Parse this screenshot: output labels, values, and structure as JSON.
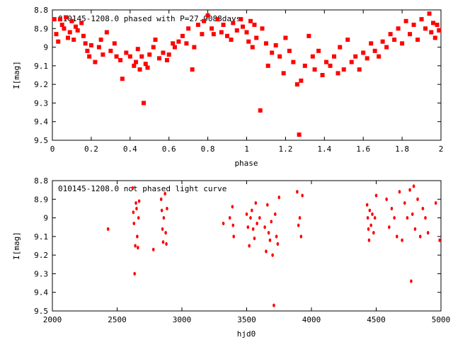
{
  "chart_data": [
    {
      "type": "scatter",
      "title": "010145-1208.0 phased with P=27.9088days",
      "xlabel": "phase",
      "ylabel": "I[mag]",
      "xlim": [
        0,
        2
      ],
      "ylim": [
        9.5,
        8.8
      ],
      "y_inverted": true,
      "grid": false,
      "xticks": [
        0,
        0.2,
        0.4,
        0.6,
        0.8,
        1,
        1.2,
        1.4,
        1.6,
        1.8,
        2
      ],
      "xticklabels": [
        "0",
        "0.2",
        "0.4",
        "0.6",
        "0.8",
        "1",
        "1.2",
        "1.4",
        "1.6",
        "1.8",
        "2"
      ],
      "yticks": [
        8.8,
        8.9,
        9.0,
        9.1,
        9.2,
        9.3,
        9.4,
        9.5
      ],
      "yticklabels": [
        "8.8",
        "8.9",
        "9",
        "9.1",
        "9.2",
        "9.3",
        "9.4",
        "9.5"
      ],
      "marker_color": "#ff0000",
      "points": [
        [
          0.01,
          8.85
        ],
        [
          0.02,
          8.93
        ],
        [
          0.03,
          8.97
        ],
        [
          0.04,
          8.85
        ],
        [
          0.05,
          8.88
        ],
        [
          0.06,
          8.9
        ],
        [
          0.07,
          8.84
        ],
        [
          0.08,
          8.95
        ],
        [
          0.09,
          8.92
        ],
        [
          0.1,
          8.86
        ],
        [
          0.11,
          8.96
        ],
        [
          0.12,
          8.89
        ],
        [
          0.13,
          8.91
        ],
        [
          0.15,
          8.87
        ],
        [
          0.16,
          8.94
        ],
        [
          0.17,
          8.98
        ],
        [
          0.18,
          9.02
        ],
        [
          0.19,
          9.05
        ],
        [
          0.2,
          8.99
        ],
        [
          0.22,
          9.08
        ],
        [
          0.24,
          9.0
        ],
        [
          0.25,
          8.96
        ],
        [
          0.26,
          9.04
        ],
        [
          0.28,
          8.92
        ],
        [
          0.3,
          9.02
        ],
        [
          0.32,
          8.98
        ],
        [
          0.33,
          9.05
        ],
        [
          0.35,
          9.07
        ],
        [
          0.36,
          9.17
        ],
        [
          0.38,
          9.03
        ],
        [
          0.4,
          9.05
        ],
        [
          0.42,
          9.1
        ],
        [
          0.43,
          9.08
        ],
        [
          0.44,
          9.01
        ],
        [
          0.45,
          9.12
        ],
        [
          0.46,
          9.05
        ],
        [
          0.47,
          9.3
        ],
        [
          0.48,
          9.09
        ],
        [
          0.49,
          9.11
        ],
        [
          0.5,
          9.04
        ],
        [
          0.52,
          9.0
        ],
        [
          0.53,
          8.96
        ],
        [
          0.55,
          9.06
        ],
        [
          0.57,
          9.03
        ],
        [
          0.59,
          9.07
        ],
        [
          0.6,
          9.04
        ],
        [
          0.62,
          8.98
        ],
        [
          0.63,
          9.0
        ],
        [
          0.65,
          8.97
        ],
        [
          0.67,
          8.94
        ],
        [
          0.69,
          8.98
        ],
        [
          0.7,
          8.9
        ],
        [
          0.72,
          9.12
        ],
        [
          0.73,
          9.0
        ],
        [
          0.75,
          8.88
        ],
        [
          0.77,
          8.93
        ],
        [
          0.78,
          8.86
        ],
        [
          0.8,
          8.83
        ],
        [
          0.82,
          8.9
        ],
        [
          0.83,
          8.93
        ],
        [
          0.85,
          8.85
        ],
        [
          0.87,
          8.92
        ],
        [
          0.88,
          8.88
        ],
        [
          0.9,
          8.94
        ],
        [
          0.92,
          8.96
        ],
        [
          0.93,
          8.87
        ],
        [
          0.95,
          8.91
        ],
        [
          0.97,
          8.85
        ],
        [
          0.98,
          8.89
        ],
        [
          1.0,
          8.92
        ],
        [
          1.01,
          8.97
        ],
        [
          1.02,
          8.86
        ],
        [
          1.03,
          9.0
        ],
        [
          1.04,
          8.88
        ],
        [
          1.05,
          8.95
        ],
        [
          1.07,
          9.34
        ],
        [
          1.08,
          8.9
        ],
        [
          1.1,
          8.98
        ],
        [
          1.11,
          9.1
        ],
        [
          1.13,
          9.03
        ],
        [
          1.15,
          8.99
        ],
        [
          1.17,
          9.05
        ],
        [
          1.19,
          9.14
        ],
        [
          1.2,
          8.95
        ],
        [
          1.22,
          9.02
        ],
        [
          1.24,
          9.08
        ],
        [
          1.26,
          9.2
        ],
        [
          1.27,
          9.47
        ],
        [
          1.28,
          9.18
        ],
        [
          1.3,
          9.1
        ],
        [
          1.32,
          8.94
        ],
        [
          1.34,
          9.05
        ],
        [
          1.35,
          9.12
        ],
        [
          1.37,
          9.02
        ],
        [
          1.39,
          9.15
        ],
        [
          1.41,
          9.08
        ],
        [
          1.43,
          9.1
        ],
        [
          1.45,
          9.05
        ],
        [
          1.47,
          9.14
        ],
        [
          1.48,
          9.0
        ],
        [
          1.5,
          9.12
        ],
        [
          1.52,
          8.96
        ],
        [
          1.54,
          9.08
        ],
        [
          1.56,
          9.05
        ],
        [
          1.58,
          9.12
        ],
        [
          1.6,
          9.03
        ],
        [
          1.62,
          9.06
        ],
        [
          1.64,
          8.98
        ],
        [
          1.66,
          9.02
        ],
        [
          1.68,
          9.05
        ],
        [
          1.7,
          8.97
        ],
        [
          1.72,
          9.0
        ],
        [
          1.74,
          8.93
        ],
        [
          1.76,
          8.96
        ],
        [
          1.78,
          8.9
        ],
        [
          1.8,
          8.98
        ],
        [
          1.82,
          8.86
        ],
        [
          1.84,
          8.93
        ],
        [
          1.86,
          8.88
        ],
        [
          1.88,
          8.96
        ],
        [
          1.9,
          8.85
        ],
        [
          1.92,
          8.9
        ],
        [
          1.94,
          8.82
        ],
        [
          1.95,
          8.92
        ],
        [
          1.96,
          8.87
        ],
        [
          1.97,
          8.95
        ],
        [
          1.98,
          8.88
        ],
        [
          1.99,
          8.91
        ]
      ]
    },
    {
      "type": "scatter",
      "title": "010145-1208.0 not phased light curve",
      "xlabel": "hjd0",
      "ylabel": "I[mag]",
      "xlim": [
        2000,
        5000
      ],
      "ylim": [
        9.5,
        8.8
      ],
      "y_inverted": true,
      "grid": false,
      "xticks": [
        2000,
        2500,
        3000,
        3500,
        4000,
        4500,
        5000
      ],
      "xticklabels": [
        "2000",
        "2500",
        "3000",
        "3500",
        "4000",
        "4500",
        "5000"
      ],
      "yticks": [
        8.8,
        8.9,
        9.0,
        9.1,
        9.2,
        9.3,
        9.4,
        9.5
      ],
      "yticklabels": [
        "8.8",
        "8.9",
        "9",
        "9.1",
        "9.2",
        "9.3",
        "9.4",
        "9.5"
      ],
      "marker_color": "#ff0000",
      "points": [
        [
          2430,
          9.06
        ],
        [
          2620,
          8.84
        ],
        [
          2625,
          8.97
        ],
        [
          2630,
          9.03
        ],
        [
          2635,
          9.3
        ],
        [
          2640,
          9.15
        ],
        [
          2645,
          8.92
        ],
        [
          2650,
          8.95
        ],
        [
          2655,
          9.1
        ],
        [
          2660,
          9.16
        ],
        [
          2665,
          9.0
        ],
        [
          2670,
          8.91
        ],
        [
          2780,
          9.17
        ],
        [
          2840,
          8.9
        ],
        [
          2845,
          8.96
        ],
        [
          2850,
          9.06
        ],
        [
          2855,
          9.13
        ],
        [
          2860,
          9.0
        ],
        [
          2870,
          8.87
        ],
        [
          2875,
          9.08
        ],
        [
          2880,
          9.14
        ],
        [
          2885,
          8.95
        ],
        [
          3320,
          9.03
        ],
        [
          3370,
          9.0
        ],
        [
          3390,
          8.94
        ],
        [
          3395,
          9.04
        ],
        [
          3400,
          9.1
        ],
        [
          3500,
          8.98
        ],
        [
          3510,
          9.05
        ],
        [
          3520,
          9.15
        ],
        [
          3530,
          9.0
        ],
        [
          3540,
          8.96
        ],
        [
          3550,
          9.06
        ],
        [
          3560,
          9.11
        ],
        [
          3570,
          8.92
        ],
        [
          3580,
          9.03
        ],
        [
          3600,
          9.0
        ],
        [
          3640,
          9.05
        ],
        [
          3650,
          9.18
        ],
        [
          3660,
          8.93
        ],
        [
          3670,
          9.08
        ],
        [
          3680,
          9.12
        ],
        [
          3690,
          9.02
        ],
        [
          3700,
          9.2
        ],
        [
          3710,
          9.47
        ],
        [
          3720,
          8.98
        ],
        [
          3730,
          9.1
        ],
        [
          3740,
          9.14
        ],
        [
          3750,
          8.89
        ],
        [
          3890,
          8.86
        ],
        [
          3900,
          9.04
        ],
        [
          3910,
          9.0
        ],
        [
          3920,
          9.1
        ],
        [
          3930,
          8.88
        ],
        [
          4430,
          8.93
        ],
        [
          4435,
          9.0
        ],
        [
          4440,
          9.06
        ],
        [
          4445,
          9.12
        ],
        [
          4450,
          8.96
        ],
        [
          4460,
          9.04
        ],
        [
          4470,
          8.98
        ],
        [
          4480,
          9.08
        ],
        [
          4490,
          9.0
        ],
        [
          4500,
          8.88
        ],
        [
          4580,
          8.9
        ],
        [
          4600,
          9.05
        ],
        [
          4620,
          8.95
        ],
        [
          4640,
          9.0
        ],
        [
          4660,
          9.1
        ],
        [
          4680,
          8.86
        ],
        [
          4700,
          9.12
        ],
        [
          4720,
          8.92
        ],
        [
          4740,
          9.0
        ],
        [
          4760,
          8.85
        ],
        [
          4770,
          9.34
        ],
        [
          4780,
          8.98
        ],
        [
          4790,
          8.83
        ],
        [
          4800,
          9.06
        ],
        [
          4820,
          8.9
        ],
        [
          4840,
          9.1
        ],
        [
          4860,
          8.95
        ],
        [
          4880,
          9.0
        ],
        [
          4900,
          9.08
        ],
        [
          4960,
          8.92
        ],
        [
          4990,
          9.12
        ]
      ]
    }
  ]
}
